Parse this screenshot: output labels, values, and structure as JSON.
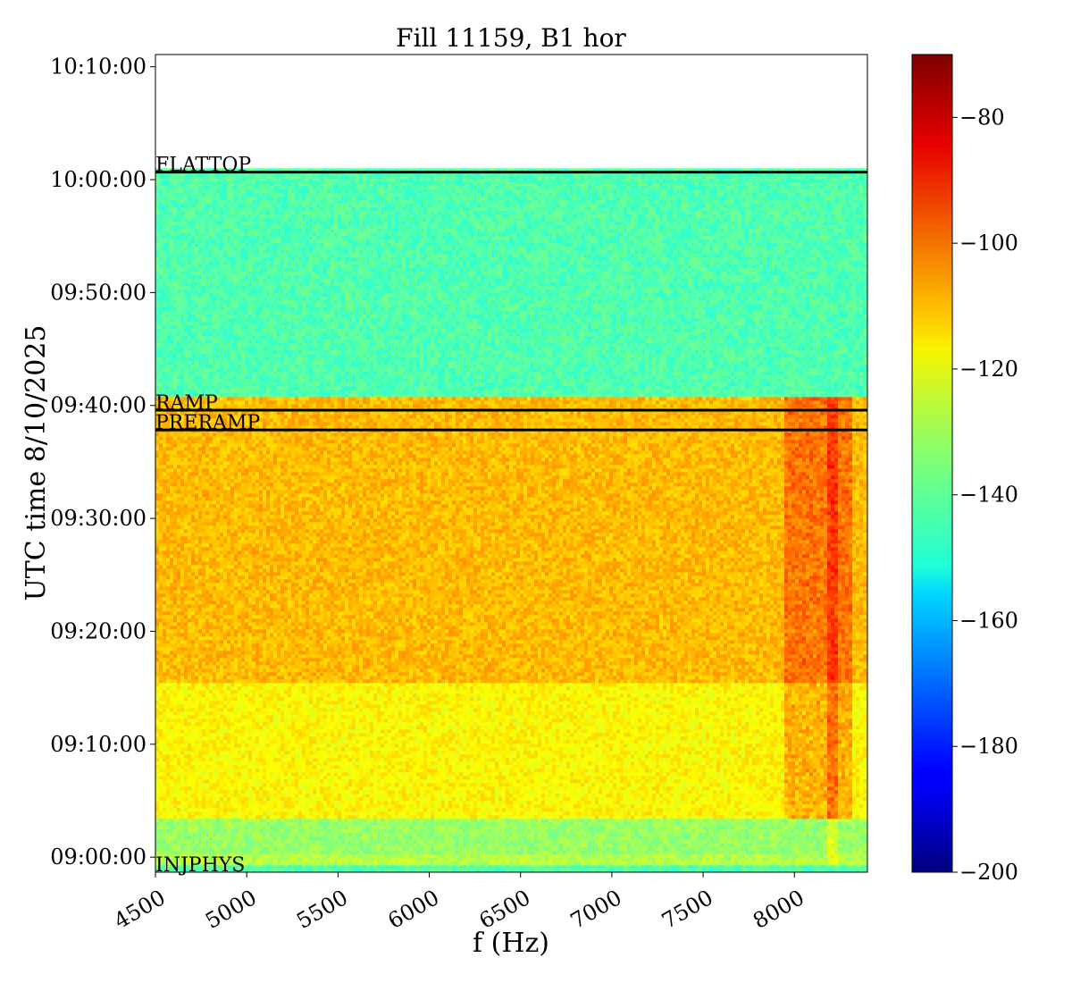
{
  "chart_data": {
    "type": "heatmap",
    "title": "Fill 11159, B1 hor",
    "xlabel": "f (Hz)",
    "ylabel": "UTC time 8/10/2025",
    "x_ticks": [
      4500,
      5000,
      5500,
      6000,
      6500,
      7000,
      7500,
      8000
    ],
    "xlim": [
      4500,
      8400
    ],
    "y_ticks": [
      "09:00:00",
      "09:10:00",
      "09:20:00",
      "09:30:00",
      "09:40:00",
      "09:50:00",
      "10:00:00",
      "10:10:00"
    ],
    "ylim": [
      "08:58:40",
      "10:11:05"
    ],
    "data_end_time": "10:01:00",
    "colorbar": {
      "colormap": "jet",
      "range": [
        -200,
        -70
      ],
      "ticks": [
        -80,
        -100,
        -120,
        -140,
        -160,
        -180,
        -200
      ],
      "tick_labels": [
        "−80",
        "−100",
        "−120",
        "−140",
        "−160",
        "−180",
        "−200"
      ]
    },
    "markers": [
      {
        "label": "FLATTOP",
        "time": "10:00:40"
      },
      {
        "label": "RAMP",
        "time": "09:39:35"
      },
      {
        "label": "PRERAMP",
        "time": "09:37:50"
      },
      {
        "label": "INJPHYS",
        "time": "08:58:40"
      }
    ],
    "level_bands": [
      {
        "from": "08:58:40",
        "to": "08:59:10",
        "level": -140
      },
      {
        "from": "08:59:10",
        "to": "09:00:20",
        "level": -128
      },
      {
        "from": "09:00:20",
        "to": "09:03:30",
        "level": -132
      },
      {
        "from": "09:03:30",
        "to": "09:15:30",
        "level": -118
      },
      {
        "from": "09:15:30",
        "to": "09:40:40",
        "level": -110
      },
      {
        "from": "09:40:40",
        "to": "10:01:00",
        "level": -141
      }
    ],
    "hot_region_hz": [
      7930,
      8300
    ]
  }
}
